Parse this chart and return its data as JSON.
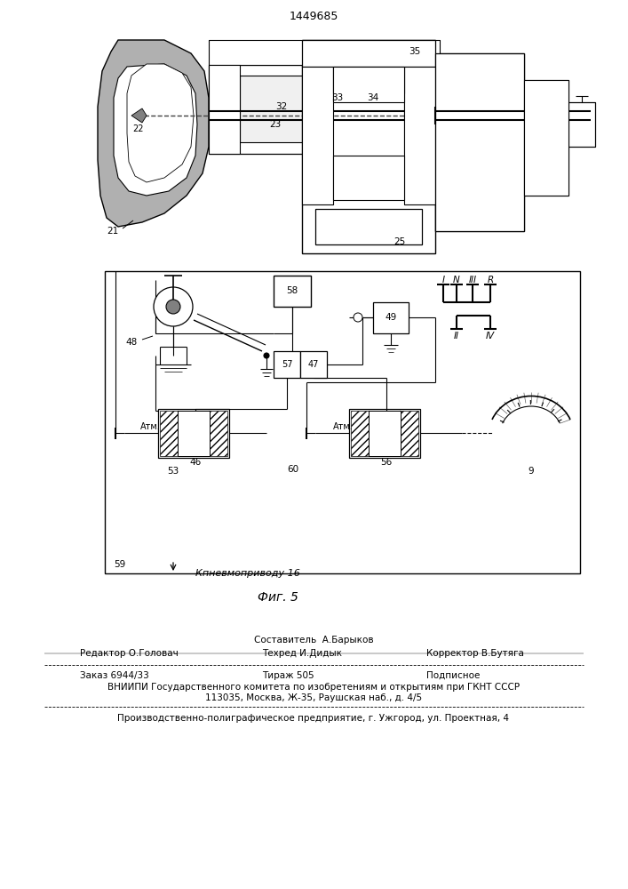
{
  "patent_number": "1449685",
  "fig_label": "Фиг. 5",
  "background_color": "#ffffff",
  "line_color": "#000000"
}
